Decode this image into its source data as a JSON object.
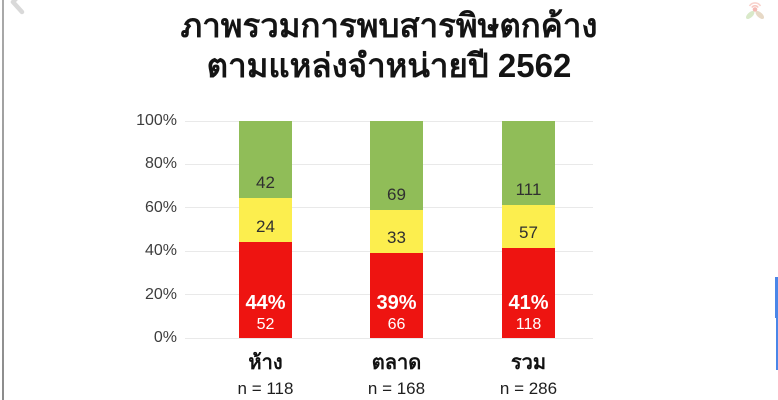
{
  "title": {
    "line1": "ภาพรวมการพบสารพิษตกค้าง",
    "line2": "ตามแหล่งจำหน่ายปี 2562"
  },
  "chart_data": {
    "type": "bar",
    "stacked": true,
    "orientation": "vertical",
    "categories": [
      "ห้าง",
      "ตลาด",
      "รวม"
    ],
    "category_sublabels": [
      "n = 118",
      "n = 168",
      "n = 286"
    ],
    "sample_sizes": [
      118,
      168,
      286
    ],
    "series": [
      {
        "name": "exceed-standard-red",
        "color": "#ee1411",
        "values": [
          52,
          66,
          118
        ],
        "pct_labels": [
          "44%",
          "39%",
          "41%"
        ],
        "label_color": "#ffffff"
      },
      {
        "name": "detected-within-limit-yellow",
        "color": "#fcee4e",
        "values": [
          24,
          33,
          57
        ],
        "label_color": "#303030"
      },
      {
        "name": "not-detected-green",
        "color": "#90bd58",
        "values": [
          42,
          69,
          111
        ],
        "label_color": "#303030"
      }
    ],
    "stack_order_bottom_to_top": [
      "exceed-standard-red",
      "detected-within-limit-yellow",
      "not-detected-green"
    ],
    "y_ticks": [
      "0%",
      "20%",
      "40%",
      "60%",
      "80%",
      "100%"
    ],
    "ylim": [
      0,
      100
    ],
    "ylabel": "",
    "xlabel": "",
    "grid": true,
    "legend": false
  },
  "decorations": {
    "scrollbar_color": "#4a86e8",
    "edge_line_color": "#969696",
    "chevron_color": "#d9d9d9",
    "logo_name": "thai-pan-leaf-logo"
  }
}
